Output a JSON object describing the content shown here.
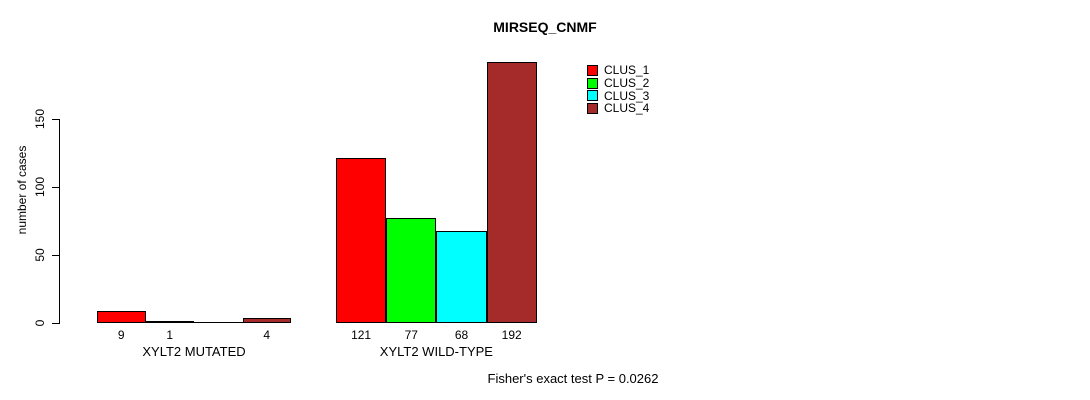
{
  "title": "MIRSEQ_CNMF",
  "annotation": "Fisher's exact test P = 0.0262",
  "colors": {
    "clus_1": "#FF0000",
    "clus_2": "#00FF00",
    "clus_3": "#00FFFF",
    "clus_4": "#A52A2A",
    "axis": "#000000",
    "background": "#FFFFFF"
  },
  "chart_data": {
    "type": "bar",
    "title": "MIRSEQ_CNMF",
    "xlabel": "",
    "ylabel": "number of cases",
    "annotation": "Fisher's exact test P = 0.0262",
    "categories": [
      "XYLT2 MUTATED",
      "XYLT2 WILD-TYPE"
    ],
    "series": [
      {
        "name": "CLUS_1",
        "color": "#FF0000",
        "values": [
          9,
          121
        ]
      },
      {
        "name": "CLUS_2",
        "color": "#00FF00",
        "values": [
          1,
          77
        ]
      },
      {
        "name": "CLUS_3",
        "color": "#00FFFF",
        "values": [
          0,
          68
        ]
      },
      {
        "name": "CLUS_4",
        "color": "#A52A2A",
        "values": [
          4,
          192
        ]
      }
    ],
    "bar_value_labels": [
      [
        "9",
        "1",
        "",
        "4"
      ],
      [
        "121",
        "77",
        "68",
        "192"
      ]
    ],
    "yticks": [
      0,
      50,
      100,
      150
    ],
    "ylim": [
      0,
      150
    ],
    "grid": false,
    "legend_position": "top-right",
    "bar_border_color": "#000000",
    "background": "#FFFFFF"
  }
}
